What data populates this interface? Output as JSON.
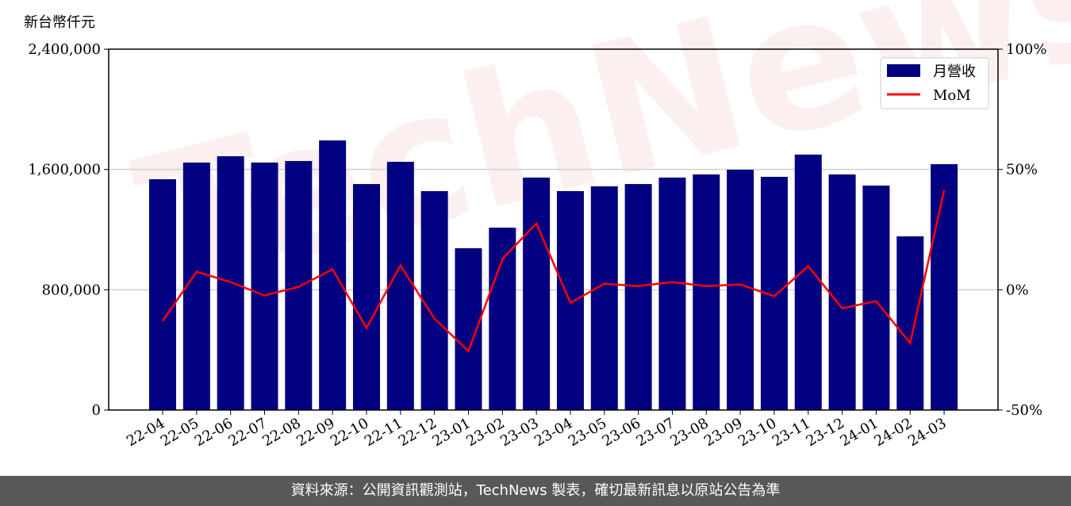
{
  "chart_data": {
    "type": "bar",
    "ylabel_left_unit": "新台幣仟元",
    "categories": [
      "22-04",
      "22-05",
      "22-06",
      "22-07",
      "22-08",
      "22-09",
      "22-10",
      "22-11",
      "22-12",
      "23-01",
      "23-02",
      "23-03",
      "23-04",
      "23-05",
      "23-06",
      "23-07",
      "23-08",
      "23-09",
      "23-10",
      "23-11",
      "23-12",
      "24-01",
      "24-02",
      "24-03"
    ],
    "series": [
      {
        "name": "月營收",
        "type": "bar",
        "axis": "left",
        "color": "#000080",
        "values": [
          1535000,
          1646000,
          1688000,
          1646000,
          1656000,
          1793000,
          1503000,
          1651000,
          1456000,
          1076000,
          1213000,
          1546000,
          1456000,
          1488000,
          1503000,
          1546000,
          1567000,
          1598000,
          1551000,
          1699000,
          1567000,
          1493000,
          1155000,
          1635000
        ]
      },
      {
        "name": "MoM",
        "type": "line",
        "axis": "right",
        "color": "#ff0000",
        "values": [
          -13.0,
          7.5,
          3.2,
          -2.4,
          1.2,
          8.5,
          -15.9,
          10.1,
          -12.0,
          -25.5,
          12.8,
          27.6,
          -5.4,
          2.5,
          1.5,
          3.2,
          1.5,
          2.2,
          -2.7,
          9.8,
          -7.7,
          -4.7,
          -22.2,
          41.4
        ]
      }
    ],
    "ylim_left": [
      0,
      2400000
    ],
    "yticks_left": [
      "0",
      "800,000",
      "1,600,000",
      "2,400,000"
    ],
    "ylim_right": [
      -50,
      100
    ],
    "yticks_right": [
      "-50%",
      "0%",
      "50%",
      "100%"
    ],
    "grid": "horizontal",
    "legend": "top-right"
  },
  "watermark": "TechNews",
  "footer": "資料來源：公開資訊觀測站，TechNews 製表，確切最新訊息以原站公告為準"
}
